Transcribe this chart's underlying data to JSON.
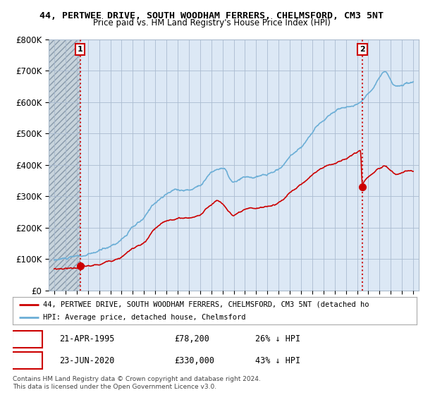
{
  "title1": "44, PERTWEE DRIVE, SOUTH WOODHAM FERRERS, CHELMSFORD, CM3 5NT",
  "title2": "Price paid vs. HM Land Registry's House Price Index (HPI)",
  "ylim": [
    0,
    800000
  ],
  "yticks": [
    0,
    100000,
    200000,
    300000,
    400000,
    500000,
    600000,
    700000,
    800000
  ],
  "ytick_labels": [
    "£0",
    "£100K",
    "£200K",
    "£300K",
    "£400K",
    "£500K",
    "£600K",
    "£700K",
    "£800K"
  ],
  "xlim_start": 1992.5,
  "xlim_end": 2025.5,
  "point1_x": 1995.3,
  "point1_y": 78200,
  "point2_x": 2020.47,
  "point2_y": 330000,
  "hpi_color": "#6BAED6",
  "price_color": "#CC0000",
  "bg_color": "#DCE8F5",
  "hatch_bg_color": "#D0D8E0",
  "grid_color": "#AABBD0",
  "legend_label1": "44, PERTWEE DRIVE, SOUTH WOODHAM FERRERS, CHELMSFORD, CM3 5NT (detached ho",
  "legend_label2": "HPI: Average price, detached house, Chelmsford",
  "annotation1_date": "21-APR-1995",
  "annotation1_price": "£78,200",
  "annotation1_hpi": "26% ↓ HPI",
  "annotation2_date": "23-JUN-2020",
  "annotation2_price": "£330,000",
  "annotation2_hpi": "43% ↓ HPI",
  "footer": "Contains HM Land Registry data © Crown copyright and database right 2024.\nThis data is licensed under the Open Government Licence v3.0."
}
